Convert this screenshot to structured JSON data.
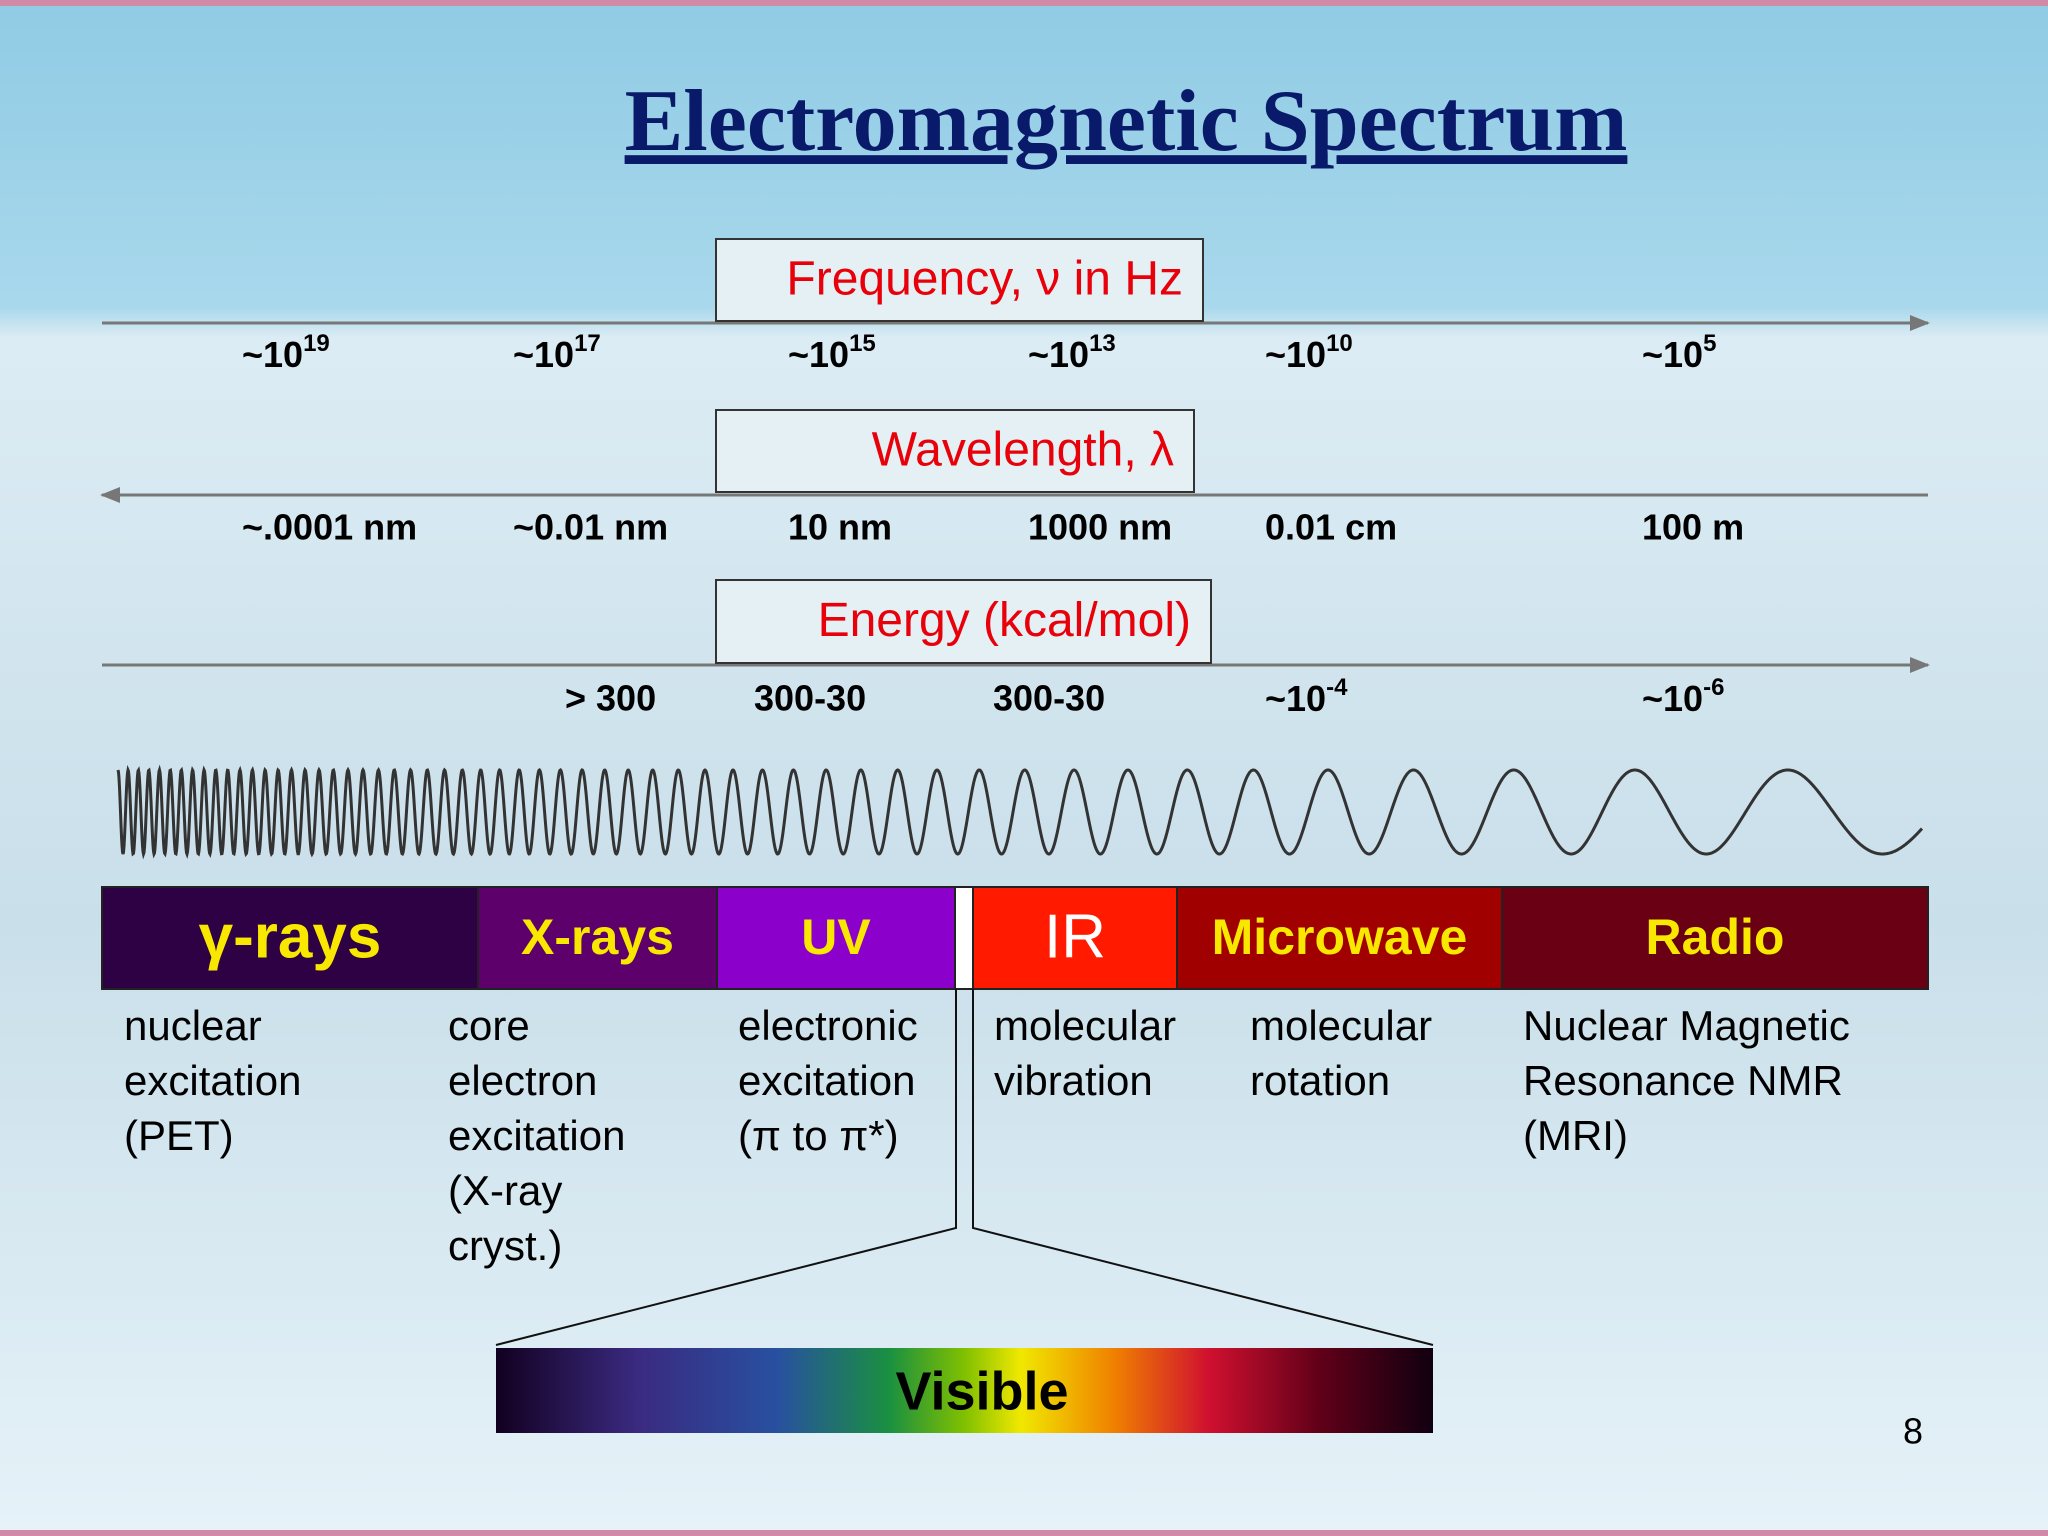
{
  "title": "Electromagnetic Spectrum",
  "scales": [
    {
      "label": "Frequency, ν in Hz",
      "values": [
        {
          "base": "~10",
          "exp": "19"
        },
        {
          "base": "~10",
          "exp": "17"
        },
        {
          "base": "~10",
          "exp": "15"
        },
        {
          "base": "~10",
          "exp": "13"
        },
        {
          "base": "~10",
          "exp": "10"
        },
        {
          "base": "~10",
          "exp": "5"
        }
      ]
    },
    {
      "label": "Wavelength, λ",
      "values": [
        "~.0001 nm",
        "~0.01 nm",
        "10 nm",
        "1000 nm",
        "0.01 cm",
        "100 m"
      ]
    },
    {
      "label": "Energy (kcal/mol)",
      "values": [
        "> 300",
        "300-30",
        "300-30",
        {
          "base": "~10",
          "exp": "-4"
        },
        {
          "base": "~10",
          "exp": "-6"
        }
      ]
    }
  ],
  "regions": [
    {
      "name": "γ-rays",
      "color": "#2e0044",
      "description": [
        "nuclear",
        "excitation",
        "(PET)"
      ]
    },
    {
      "name": "X-rays",
      "color": "#5e006c",
      "description": [
        "core",
        "electron",
        "excitation",
        "(X-ray",
        "cryst.)"
      ]
    },
    {
      "name": "UV",
      "color": "#8c00cc",
      "description": [
        "electronic",
        "excitation",
        "(π to π*)"
      ]
    },
    {
      "name": "IR",
      "color": "#ff1a00",
      "description": [
        "molecular",
        "vibration"
      ]
    },
    {
      "name": "Microwave",
      "color": "#a00000",
      "description": [
        "molecular",
        "rotation"
      ]
    },
    {
      "name": "Radio",
      "color": "#6a0014",
      "description": [
        "Nuclear Magnetic",
        "Resonance  NMR",
        "(MRI)"
      ]
    }
  ],
  "visible": "Visible",
  "page_number": "8"
}
